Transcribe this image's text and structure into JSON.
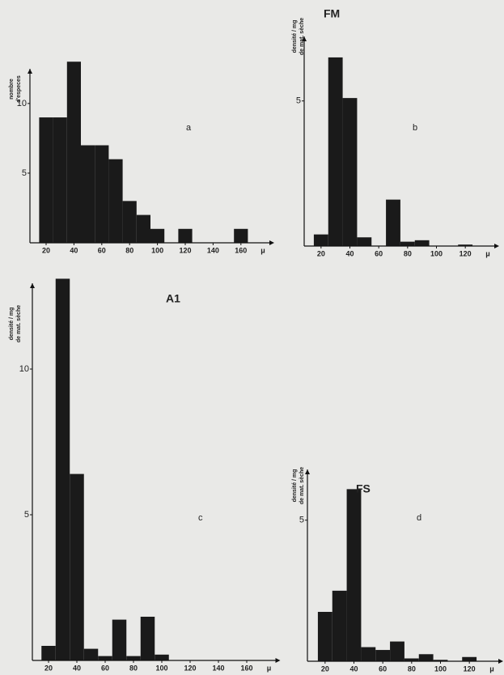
{
  "chart_data": [
    {
      "type": "histogram",
      "annotation": "a",
      "ylabel": [
        "nombre",
        "d'especes"
      ],
      "color": "#1a1a1a",
      "bins": [
        15,
        25,
        35,
        45,
        55,
        65,
        75,
        85,
        95,
        105,
        115,
        125,
        135,
        145,
        155,
        165
      ],
      "counts": [
        9,
        9,
        13,
        7,
        7,
        6,
        3,
        2,
        1,
        0,
        1,
        0,
        0,
        0,
        1
      ],
      "xlim": [
        10,
        170
      ],
      "xticks": [
        20,
        40,
        60,
        80,
        100,
        120,
        140,
        160
      ],
      "xunit": "μ",
      "ylim": [
        0,
        14
      ],
      "yticks": [
        5,
        10
      ]
    },
    {
      "type": "histogram",
      "title": "FM",
      "annotation": "b",
      "ylabel": [
        "densité / mg",
        "de mat. sèche"
      ],
      "color": "#1a1a1a",
      "bins": [
        15,
        25,
        35,
        45,
        55,
        65,
        75,
        85,
        95,
        105,
        115,
        125
      ],
      "counts": [
        0.4,
        6.5,
        5.1,
        0.3,
        0,
        1.6,
        0.15,
        0.2,
        0,
        0,
        0.05
      ],
      "xlim": [
        10,
        130
      ],
      "xticks": [
        20,
        40,
        60,
        80,
        100,
        120
      ],
      "xunit": "μ",
      "ylim": [
        0,
        7
      ],
      "yticks": [
        5
      ]
    },
    {
      "type": "histogram",
      "title": "A1",
      "annotation": "c",
      "ylabel": [
        "densité / mg",
        "de mat. sèche"
      ],
      "color": "#1a1a1a",
      "bins": [
        15,
        25,
        35,
        45,
        55,
        65,
        75,
        85,
        95,
        105
      ],
      "counts": [
        0.5,
        13.1,
        6.4,
        0.4,
        0.15,
        1.4,
        0.15,
        1.5,
        0.2
      ],
      "xlim": [
        10,
        170
      ],
      "xticks": [
        20,
        40,
        60,
        80,
        100,
        120,
        140,
        160
      ],
      "xunit": "μ",
      "ylim": [
        0,
        13.5
      ],
      "yticks": [
        5,
        10
      ]
    },
    {
      "type": "histogram",
      "title": "FS",
      "annotation": "d",
      "ylabel": [
        "densité / mg",
        "de mat. sèche"
      ],
      "color": "#1a1a1a",
      "bins": [
        15,
        25,
        35,
        45,
        55,
        65,
        75,
        85,
        95,
        105,
        115,
        125
      ],
      "counts": [
        1.75,
        2.5,
        6.1,
        0.5,
        0.4,
        0.7,
        0.1,
        0.25,
        0.05,
        0,
        0.15
      ],
      "xlim": [
        10,
        130
      ],
      "xticks": [
        20,
        40,
        60,
        80,
        100,
        120
      ],
      "xunit": "μ",
      "ylim": [
        0,
        7
      ],
      "yticks": [
        5
      ]
    }
  ]
}
